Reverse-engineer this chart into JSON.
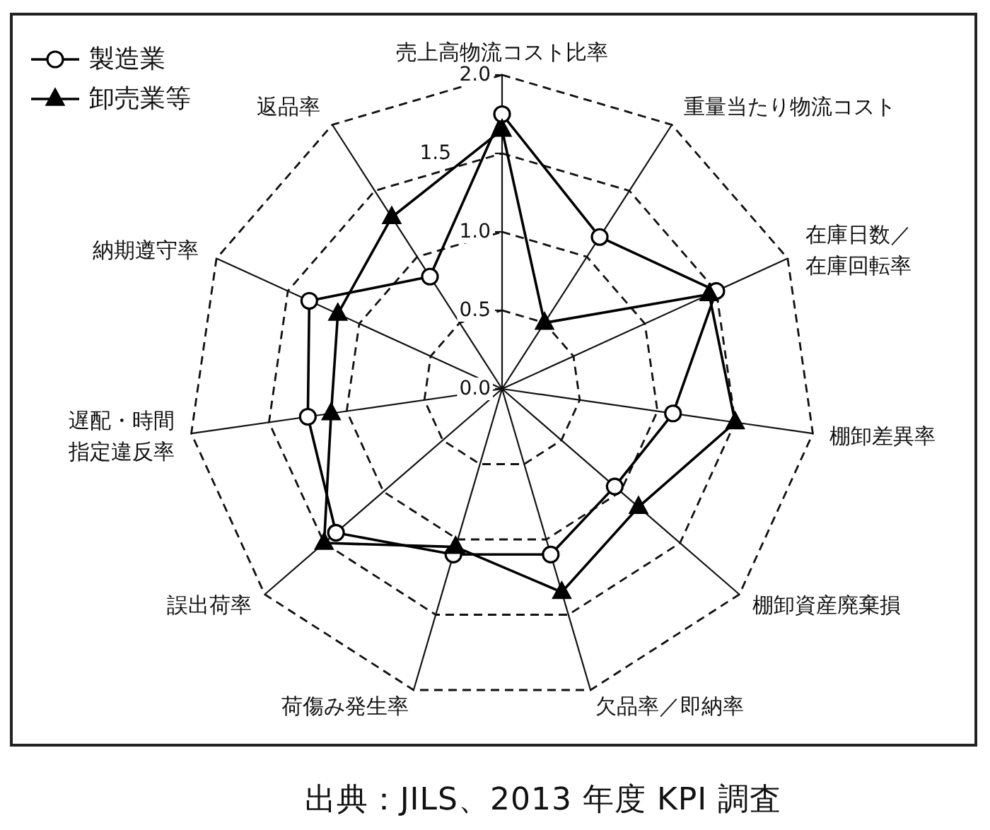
{
  "chart_data": {
    "type": "radar",
    "categories": [
      "売上高物流コスト比率",
      "重量当たり物流コスト",
      "在庫日数／在庫回転率",
      "棚卸差異率",
      "棚卸資産廃棄損",
      "欠品率／即納率",
      "荷傷み発生率",
      "誤出荷率",
      "遅配・時間指定違反率",
      "納期遵守率",
      "返品率"
    ],
    "series": [
      {
        "name": "製造業",
        "color": "#000000",
        "marker": "circle",
        "values": [
          1.75,
          1.15,
          1.5,
          1.1,
          0.95,
          1.1,
          1.1,
          1.4,
          1.25,
          1.35,
          0.85
        ]
      },
      {
        "name": "卸売業等",
        "color": "#000000",
        "marker": "triangle",
        "values": [
          1.65,
          0.5,
          1.45,
          1.5,
          1.15,
          1.35,
          1.05,
          1.5,
          1.1,
          1.15,
          1.3
        ]
      }
    ],
    "ylim": [
      0,
      2
    ],
    "yticks": [
      {
        "value": 0,
        "label": "0.0"
      },
      {
        "value": 0.5,
        "label": "0.5"
      },
      {
        "value": 1,
        "label": "1.0"
      },
      {
        "value": 1.5,
        "label": "1.5"
      },
      {
        "value": 2,
        "label": "2.0"
      }
    ],
    "grid": true,
    "legend": "top left",
    "annotations": [
      "出典：JILS、2013 年度 KPI 調査"
    ]
  }
}
